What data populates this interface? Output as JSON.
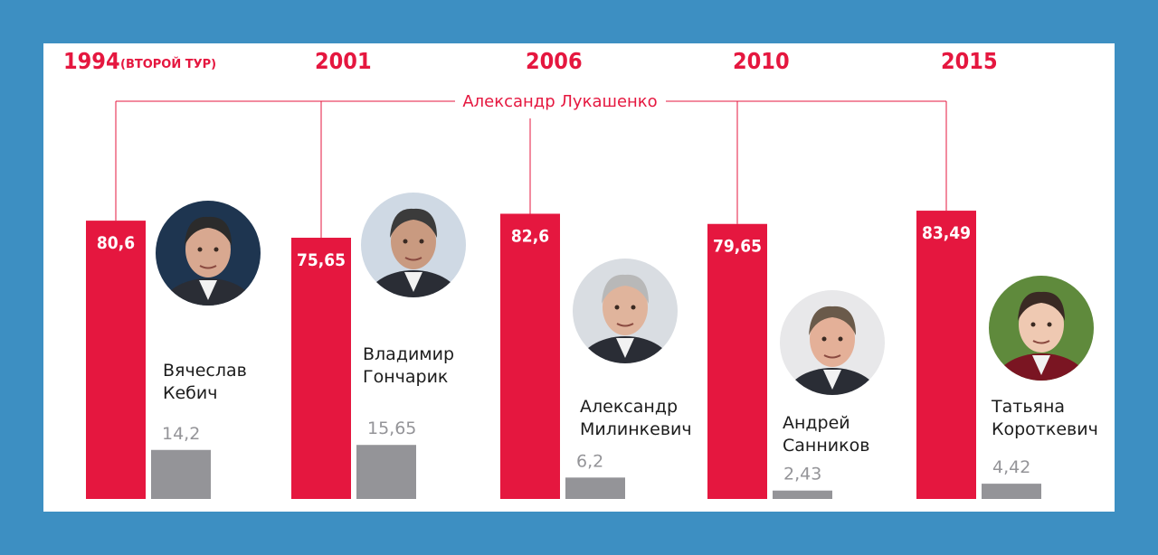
{
  "colors": {
    "frame": "#3d8fc2",
    "winner": "#e5173f",
    "runner_up": "#949498",
    "label_grey": "#949498",
    "text": "#1c1c1c"
  },
  "winner_label": "Александр Лукашенко",
  "chart_data": {
    "type": "bar",
    "categories": [
      "1994",
      "2001",
      "2006",
      "2010",
      "2015"
    ],
    "category_notes": [
      "(ВТОРОЙ ТУР)",
      "",
      "",
      "",
      ""
    ],
    "series": [
      {
        "name": "Александр Лукашенко",
        "values": [
          80.6,
          75.65,
          82.6,
          79.65,
          83.49
        ],
        "value_labels": [
          "80,6",
          "75,65",
          "82,6",
          "79,65",
          "83,49"
        ]
      },
      {
        "values": [
          14.2,
          15.65,
          6.2,
          2.43,
          4.42
        ],
        "value_labels": [
          "14,2",
          "15,65",
          "6,2",
          "2,43",
          "4,42"
        ]
      }
    ],
    "runner_up_names": [
      [
        "Вячеслав",
        "Кебич"
      ],
      [
        "Владимир",
        "Гончарик"
      ],
      [
        "Александр",
        "Милинкевич"
      ],
      [
        "Андрей",
        "Санников"
      ],
      [
        "Татьяна",
        "Короткевич"
      ]
    ],
    "ylim": [
      0,
      100
    ]
  }
}
